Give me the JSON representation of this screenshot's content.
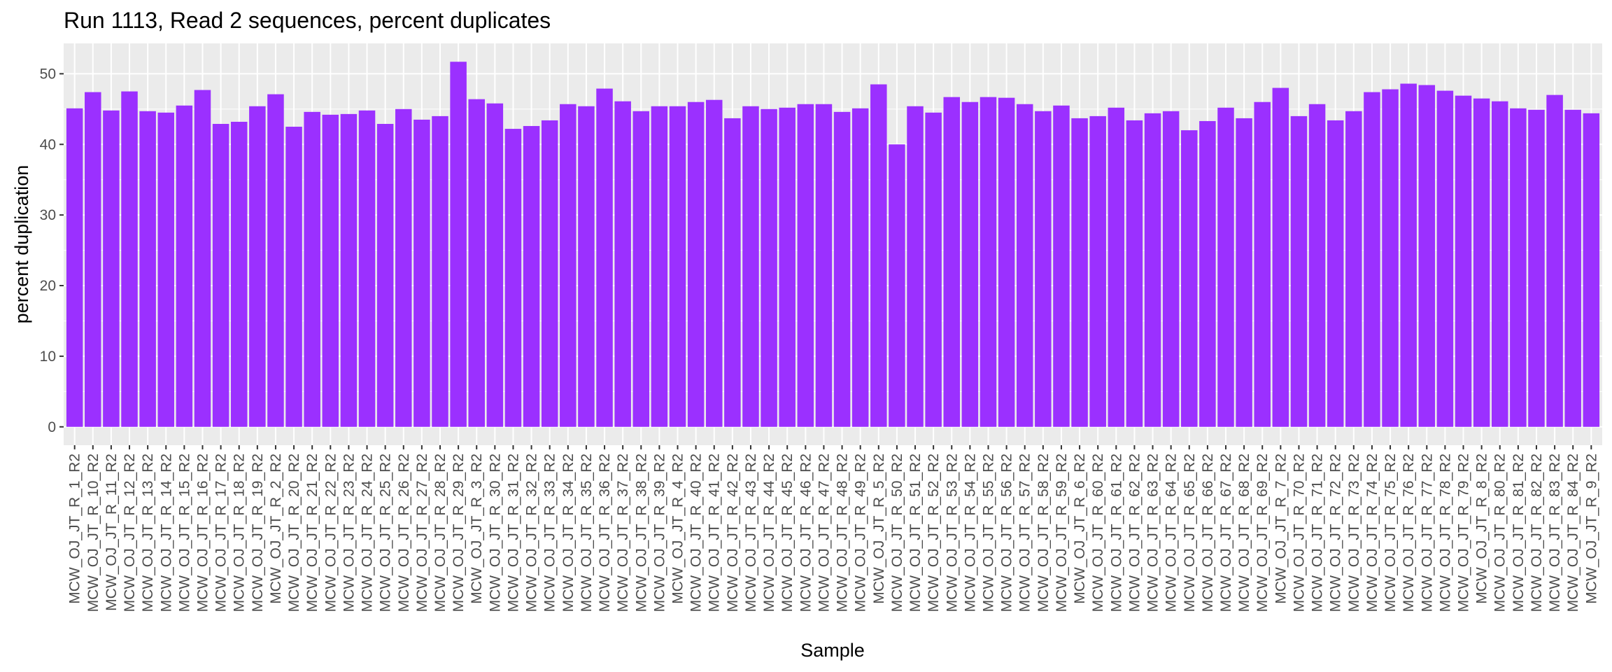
{
  "chart_data": {
    "type": "bar",
    "title": "Run 1113, Read 2 sequences, percent duplicates",
    "xlabel": "Sample",
    "ylabel": "percent duplication",
    "ylim": [
      -2.6,
      54.3
    ],
    "yticks": [
      0,
      10,
      20,
      30,
      40,
      50
    ],
    "grid": true,
    "legend": "none",
    "bar_color": "#9B30FF",
    "panel_color": "#EBEBEB",
    "categories": [
      "MCW_OJ_JT_R_1_R2",
      "MCW_OJ_JT_R_10_R2",
      "MCW_OJ_JT_R_11_R2",
      "MCW_OJ_JT_R_12_R2",
      "MCW_OJ_JT_R_13_R2",
      "MCW_OJ_JT_R_14_R2",
      "MCW_OJ_JT_R_15_R2",
      "MCW_OJ_JT_R_16_R2",
      "MCW_OJ_JT_R_17_R2",
      "MCW_OJ_JT_R_18_R2",
      "MCW_OJ_JT_R_19_R2",
      "MCW_OJ_JT_R_2_R2",
      "MCW_OJ_JT_R_20_R2",
      "MCW_OJ_JT_R_21_R2",
      "MCW_OJ_JT_R_22_R2",
      "MCW_OJ_JT_R_23_R2",
      "MCW_OJ_JT_R_24_R2",
      "MCW_OJ_JT_R_25_R2",
      "MCW_OJ_JT_R_26_R2",
      "MCW_OJ_JT_R_27_R2",
      "MCW_OJ_JT_R_28_R2",
      "MCW_OJ_JT_R_29_R2",
      "MCW_OJ_JT_R_3_R2",
      "MCW_OJ_JT_R_30_R2",
      "MCW_OJ_JT_R_31_R2",
      "MCW_OJ_JT_R_32_R2",
      "MCW_OJ_JT_R_33_R2",
      "MCW_OJ_JT_R_34_R2",
      "MCW_OJ_JT_R_35_R2",
      "MCW_OJ_JT_R_36_R2",
      "MCW_OJ_JT_R_37_R2",
      "MCW_OJ_JT_R_38_R2",
      "MCW_OJ_JT_R_39_R2",
      "MCW_OJ_JT_R_4_R2",
      "MCW_OJ_JT_R_40_R2",
      "MCW_OJ_JT_R_41_R2",
      "MCW_OJ_JT_R_42_R2",
      "MCW_OJ_JT_R_43_R2",
      "MCW_OJ_JT_R_44_R2",
      "MCW_OJ_JT_R_45_R2",
      "MCW_OJ_JT_R_46_R2",
      "MCW_OJ_JT_R_47_R2",
      "MCW_OJ_JT_R_48_R2",
      "MCW_OJ_JT_R_49_R2",
      "MCW_OJ_JT_R_5_R2",
      "MCW_OJ_JT_R_50_R2",
      "MCW_OJ_JT_R_51_R2",
      "MCW_OJ_JT_R_52_R2",
      "MCW_OJ_JT_R_53_R2",
      "MCW_OJ_JT_R_54_R2",
      "MCW_OJ_JT_R_55_R2",
      "MCW_OJ_JT_R_56_R2",
      "MCW_OJ_JT_R_57_R2",
      "MCW_OJ_JT_R_58_R2",
      "MCW_OJ_JT_R_59_R2",
      "MCW_OJ_JT_R_6_R2",
      "MCW_OJ_JT_R_60_R2",
      "MCW_OJ_JT_R_61_R2",
      "MCW_OJ_JT_R_62_R2",
      "MCW_OJ_JT_R_63_R2",
      "MCW_OJ_JT_R_64_R2",
      "MCW_OJ_JT_R_65_R2",
      "MCW_OJ_JT_R_66_R2",
      "MCW_OJ_JT_R_67_R2",
      "MCW_OJ_JT_R_68_R2",
      "MCW_OJ_JT_R_69_R2",
      "MCW_OJ_JT_R_7_R2",
      "MCW_OJ_JT_R_70_R2",
      "MCW_OJ_JT_R_71_R2",
      "MCW_OJ_JT_R_72_R2",
      "MCW_OJ_JT_R_73_R2",
      "MCW_OJ_JT_R_74_R2",
      "MCW_OJ_JT_R_75_R2",
      "MCW_OJ_JT_R_76_R2",
      "MCW_OJ_JT_R_77_R2",
      "MCW_OJ_JT_R_78_R2",
      "MCW_OJ_JT_R_79_R2",
      "MCW_OJ_JT_R_8_R2",
      "MCW_OJ_JT_R_80_R2",
      "MCW_OJ_JT_R_81_R2",
      "MCW_OJ_JT_R_82_R2",
      "MCW_OJ_JT_R_83_R2",
      "MCW_OJ_JT_R_84_R2",
      "MCW_OJ_JT_R_9_R2"
    ],
    "values": [
      45.1,
      47.4,
      44.8,
      47.5,
      44.7,
      44.5,
      45.5,
      47.7,
      42.9,
      43.2,
      45.4,
      47.1,
      42.5,
      44.6,
      44.2,
      44.3,
      44.8,
      42.9,
      45.0,
      43.5,
      44.0,
      51.7,
      46.4,
      45.8,
      42.2,
      42.6,
      43.4,
      45.7,
      45.4,
      47.9,
      46.1,
      44.7,
      45.4,
      45.4,
      46.0,
      46.3,
      43.7,
      45.4,
      45.0,
      45.2,
      45.7,
      45.7,
      44.6,
      45.1,
      48.5,
      40.0,
      45.4,
      44.5,
      46.7,
      46.0,
      46.7,
      46.6,
      45.7,
      44.7,
      45.5,
      43.7,
      44.0,
      45.2,
      43.4,
      44.4,
      44.7,
      42.0,
      43.3,
      45.2,
      43.7,
      46.0,
      48.0,
      44.0,
      45.7,
      43.4,
      44.7,
      47.4,
      47.8,
      48.6,
      48.4,
      47.6,
      46.9,
      46.5,
      46.1,
      45.1,
      44.9,
      47.0,
      44.9,
      44.4
    ]
  }
}
